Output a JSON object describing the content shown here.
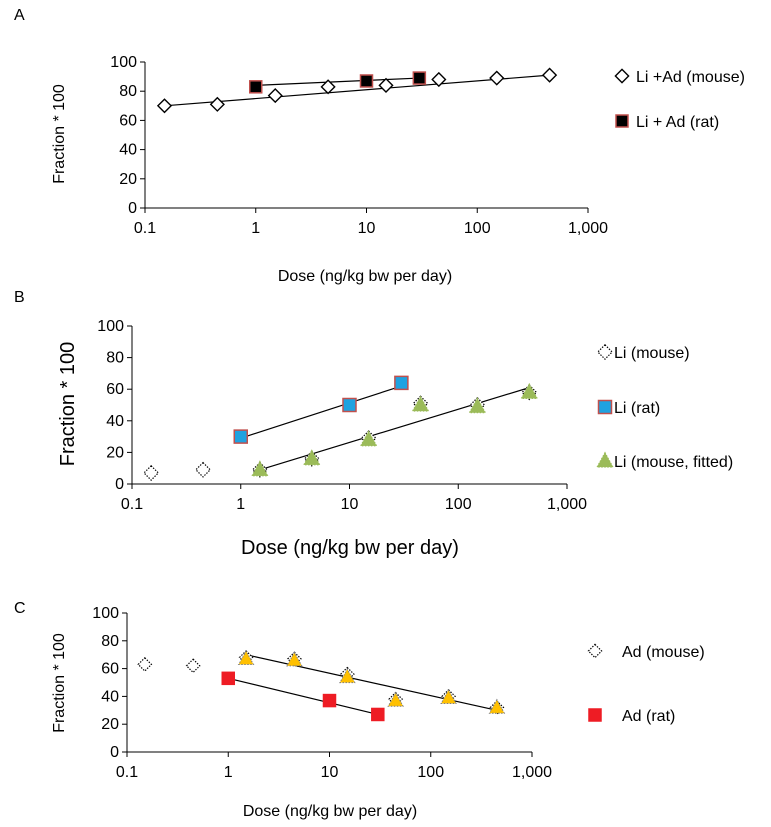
{
  "chart_data": [
    {
      "panel": "A",
      "type": "scatter",
      "xlabel": "Dose (ng/kg bw per day)",
      "ylabel": "Fraction * 100",
      "xscale": "log",
      "xlim": [
        0.1,
        1000
      ],
      "ylim": [
        0,
        100
      ],
      "xticks": [
        "0.1",
        "1",
        "10",
        "100",
        "1,000"
      ],
      "yticks": [
        "0",
        "20",
        "40",
        "60",
        "80",
        "100"
      ],
      "grid": false,
      "legend_position": "right",
      "series": [
        {
          "name": "Li +Ad (mouse)",
          "marker": "diamond",
          "color": "#ffffff",
          "edge_color": "#000000",
          "points": [
            [
              0.15,
              70
            ],
            [
              0.45,
              71
            ],
            [
              1.5,
              77
            ],
            [
              4.5,
              83
            ],
            [
              15,
              84
            ],
            [
              45,
              88
            ],
            [
              150,
              89
            ],
            [
              450,
              91
            ]
          ],
          "trendline": [
            [
              0.15,
              70
            ],
            [
              450,
              91
            ]
          ]
        },
        {
          "name": "Li + Ad (rat)",
          "marker": "square",
          "color": "#000000",
          "edge_color": "#c0504d",
          "points": [
            [
              1,
              83
            ],
            [
              10,
              87
            ],
            [
              30,
              89
            ]
          ],
          "trendline": [
            [
              1,
              84
            ],
            [
              30,
              89
            ]
          ]
        }
      ]
    },
    {
      "panel": "B",
      "type": "scatter",
      "xlabel": "Dose (ng/kg bw per day)",
      "ylabel": "Fraction * 100",
      "xscale": "log",
      "xlim": [
        0.1,
        1000
      ],
      "ylim": [
        0,
        100
      ],
      "xticks": [
        "0.1",
        "1",
        "10",
        "100",
        "1,000"
      ],
      "yticks": [
        "0",
        "20",
        "40",
        "60",
        "80",
        "100"
      ],
      "grid": false,
      "legend_position": "right",
      "series": [
        {
          "name": "Li (mouse)",
          "marker": "diamond-dotted",
          "color": "#ffffff",
          "edge_color": "#000000",
          "points": [
            [
              0.15,
              7
            ],
            [
              0.45,
              9
            ],
            [
              1.5,
              9
            ],
            [
              4.5,
              16
            ],
            [
              15,
              29
            ],
            [
              45,
              51
            ],
            [
              150,
              50
            ],
            [
              450,
              58
            ]
          ]
        },
        {
          "name": "Li (rat)",
          "marker": "square",
          "color": "#1fa2e0",
          "edge_color": "#c0504d",
          "points": [
            [
              1,
              30
            ],
            [
              10,
              50
            ],
            [
              30,
              64
            ]
          ],
          "trendline": [
            [
              1,
              29
            ],
            [
              30,
              62
            ]
          ]
        },
        {
          "name": "Li (mouse, fitted)",
          "marker": "triangle",
          "color": "#9bbb59",
          "edge_color": "#9bbb59",
          "points": [
            [
              1.5,
              9
            ],
            [
              4.5,
              16
            ],
            [
              15,
              28
            ],
            [
              45,
              50
            ],
            [
              150,
              49
            ],
            [
              450,
              58
            ]
          ],
          "trendline": [
            [
              1.5,
              9
            ],
            [
              450,
              61
            ]
          ]
        }
      ]
    },
    {
      "panel": "C",
      "type": "scatter",
      "xlabel": "Dose (ng/kg bw per day)",
      "ylabel": "Fraction * 100",
      "xscale": "log",
      "xlim": [
        0.1,
        1000
      ],
      "ylim": [
        0,
        100
      ],
      "xticks": [
        "0.1",
        "1",
        "10",
        "100",
        "1,000"
      ],
      "yticks": [
        "0",
        "20",
        "40",
        "60",
        "80",
        "100"
      ],
      "grid": false,
      "legend_position": "right",
      "series": [
        {
          "name": "Ad (mouse)",
          "marker": "diamond-dotted",
          "color": "#ffffff",
          "edge_color": "#000000",
          "points": [
            [
              0.15,
              63
            ],
            [
              0.45,
              62
            ],
            [
              1.5,
              68
            ],
            [
              4.5,
              67
            ],
            [
              15,
              56
            ],
            [
              45,
              38
            ],
            [
              150,
              40
            ],
            [
              450,
              32
            ]
          ]
        },
        {
          "name": "Ad (rat)",
          "marker": "square",
          "color": "#ee1c24",
          "edge_color": "#ee1c24",
          "points": [
            [
              1,
              53
            ],
            [
              10,
              37
            ],
            [
              30,
              27
            ]
          ],
          "trendline": [
            [
              1,
              53
            ],
            [
              30,
              27
            ]
          ]
        },
        {
          "name": "",
          "marker": "triangle",
          "color": "#ffc000",
          "edge_color": "#7f7f7f",
          "points": [
            [
              1.5,
              67
            ],
            [
              4.5,
              66
            ],
            [
              15,
              54
            ],
            [
              45,
              37
            ],
            [
              150,
              39
            ],
            [
              450,
              32
            ]
          ],
          "trendline": [
            [
              1.5,
              70
            ],
            [
              450,
              30
            ]
          ]
        }
      ]
    }
  ]
}
